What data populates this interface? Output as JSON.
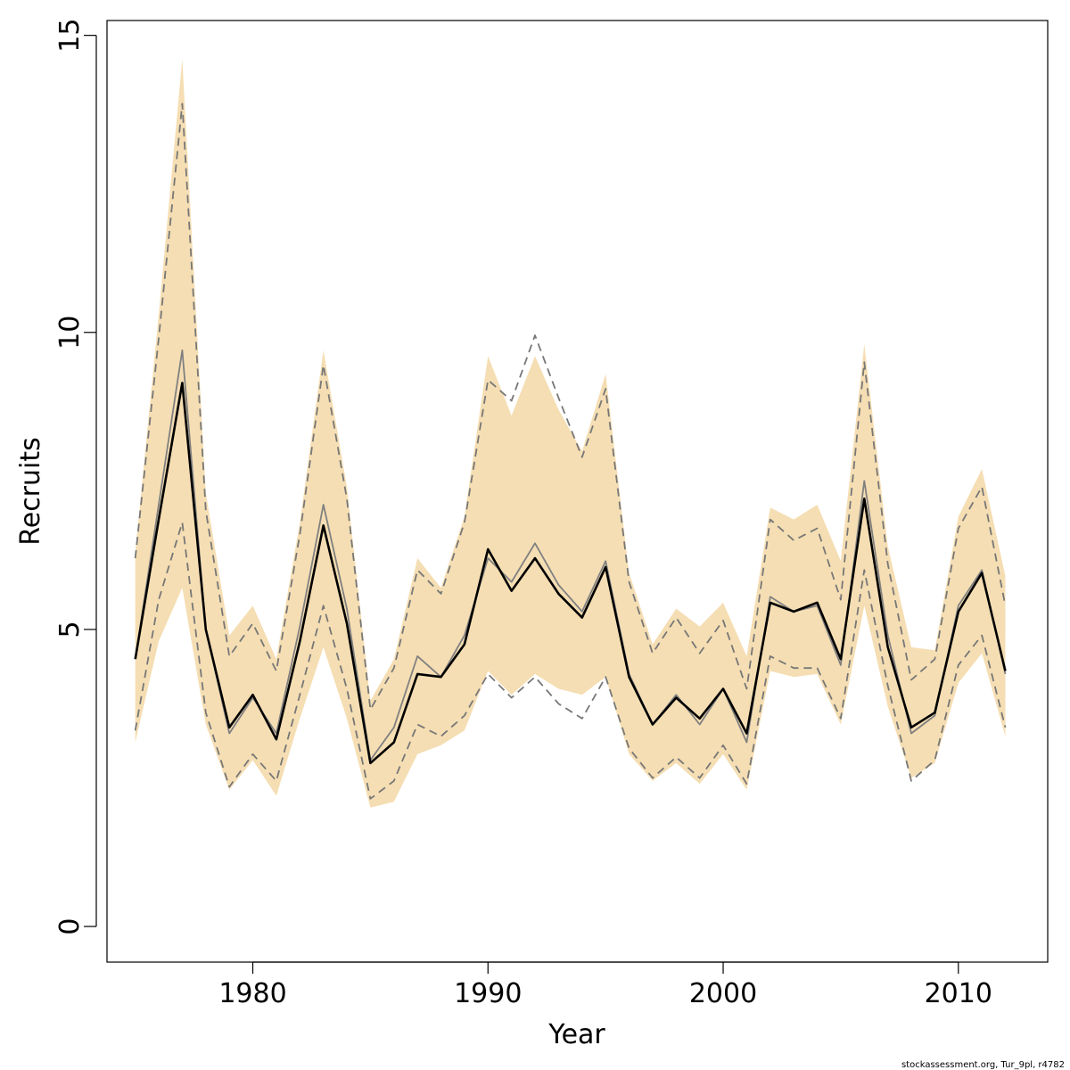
{
  "chart_data": {
    "type": "line",
    "title": "",
    "xlabel": "Year",
    "ylabel": "Recruits",
    "xlim": [
      1973.8,
      2013.8
    ],
    "ylim": [
      -0.6,
      15.25
    ],
    "xticks": [
      1980,
      1990,
      2000,
      2010
    ],
    "yticks": [
      0,
      5,
      10,
      15
    ],
    "grid": false,
    "legend": "none",
    "credit": "stockassessment.org, Tur_9pl, r4782",
    "colors": {
      "band": "#f5deb3",
      "estimate": "#000000",
      "secondary": "#808080",
      "dashed": "#777777"
    },
    "x": [
      1975,
      1976,
      1977,
      1978,
      1979,
      1980,
      1981,
      1982,
      1983,
      1984,
      1985,
      1986,
      1987,
      1988,
      1989,
      1990,
      1991,
      1992,
      1993,
      1994,
      1995,
      1996,
      1997,
      1998,
      1999,
      2000,
      2001,
      2002,
      2003,
      2004,
      2005,
      2006,
      2007,
      2008,
      2009,
      2010,
      2011,
      2012
    ],
    "band_lower": [
      3.1,
      4.8,
      5.7,
      3.4,
      2.3,
      2.8,
      2.2,
      3.5,
      4.7,
      3.5,
      2.0,
      2.1,
      2.9,
      3.05,
      3.3,
      4.3,
      3.9,
      4.25,
      4.0,
      3.9,
      4.2,
      2.9,
      2.45,
      2.75,
      2.4,
      2.9,
      2.3,
      4.3,
      4.2,
      4.25,
      3.4,
      5.4,
      3.7,
      2.5,
      2.75,
      4.1,
      4.6,
      3.2
    ],
    "band_upper": [
      6.3,
      10.3,
      14.6,
      7.3,
      4.9,
      5.4,
      4.5,
      6.8,
      9.7,
      7.4,
      3.8,
      4.5,
      6.2,
      5.7,
      6.9,
      9.6,
      8.6,
      9.6,
      8.7,
      8.0,
      9.3,
      5.95,
      4.75,
      5.35,
      5.05,
      5.45,
      4.55,
      7.05,
      6.85,
      7.1,
      6.15,
      9.8,
      6.4,
      4.7,
      4.65,
      6.9,
      7.7,
      5.9
    ],
    "series": [
      {
        "values": [
          4.5,
          6.85,
          9.15,
          5.0,
          3.35,
          3.9,
          3.15,
          4.8,
          6.75,
          5.1,
          2.75,
          3.1,
          4.25,
          4.2,
          4.75,
          6.35,
          5.65,
          6.2,
          5.6,
          5.2,
          6.05,
          4.2,
          3.4,
          3.85,
          3.5,
          4.0,
          3.25,
          5.45,
          5.3,
          5.45,
          4.5,
          7.2,
          4.7,
          3.35,
          3.6,
          5.3,
          5.95,
          4.3
        ]
      },
      {
        "values": [
          4.5,
          7.1,
          9.7,
          5.0,
          3.25,
          3.85,
          3.25,
          5.05,
          7.1,
          5.35,
          2.8,
          3.35,
          4.55,
          4.2,
          4.9,
          6.2,
          5.8,
          6.45,
          5.75,
          5.3,
          6.15,
          4.25,
          3.4,
          3.9,
          3.4,
          4.0,
          3.1,
          5.55,
          5.3,
          5.4,
          4.4,
          7.5,
          4.9,
          3.25,
          3.55,
          5.4,
          6.0,
          4.25
        ]
      },
      {
        "values": [
          6.2,
          9.9,
          13.85,
          7.0,
          4.55,
          5.1,
          4.3,
          6.6,
          9.45,
          7.2,
          3.65,
          4.35,
          6.0,
          5.6,
          6.8,
          9.2,
          8.85,
          9.95,
          8.9,
          7.9,
          9.05,
          5.8,
          4.6,
          5.2,
          4.6,
          5.15,
          4.0,
          6.85,
          6.5,
          6.7,
          5.5,
          9.5,
          6.1,
          4.15,
          4.5,
          6.7,
          7.4,
          5.4
        ]
      },
      {
        "values": [
          3.3,
          5.5,
          6.8,
          3.6,
          2.35,
          2.9,
          2.45,
          3.9,
          5.4,
          4.0,
          2.15,
          2.45,
          3.4,
          3.2,
          3.55,
          4.25,
          3.85,
          4.2,
          3.75,
          3.5,
          4.2,
          3.0,
          2.5,
          2.85,
          2.5,
          3.05,
          2.4,
          4.55,
          4.35,
          4.35,
          3.5,
          6.0,
          4.05,
          2.45,
          2.8,
          4.4,
          4.9,
          3.35
        ]
      }
    ]
  }
}
